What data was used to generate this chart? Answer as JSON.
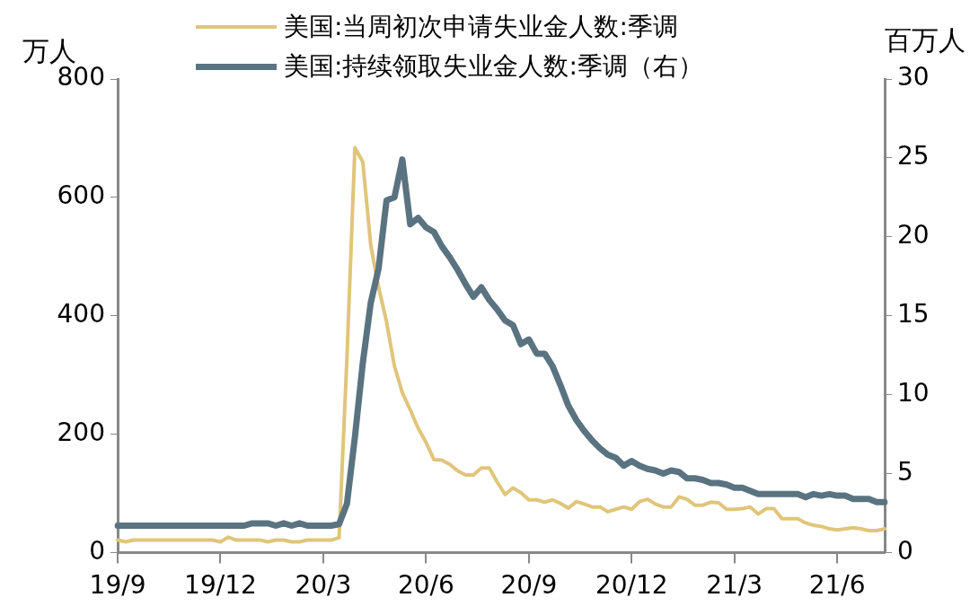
{
  "chart_data": {
    "type": "line",
    "ylabel": "万人",
    "y2label": "百万人",
    "categories": [
      "19/9",
      null,
      null,
      null,
      null,
      null,
      null,
      null,
      null,
      null,
      null,
      null,
      null,
      "19/12",
      null,
      null,
      null,
      null,
      null,
      null,
      null,
      null,
      null,
      null,
      null,
      null,
      "20/3",
      null,
      null,
      null,
      null,
      null,
      null,
      null,
      null,
      null,
      null,
      null,
      null,
      "20/6",
      null,
      null,
      null,
      null,
      null,
      null,
      null,
      null,
      null,
      null,
      null,
      null,
      "20/9",
      null,
      null,
      null,
      null,
      null,
      null,
      null,
      null,
      null,
      null,
      null,
      null,
      "20/12",
      null,
      null,
      null,
      null,
      null,
      null,
      null,
      null,
      null,
      null,
      null,
      null,
      "21/3",
      null,
      null,
      null,
      null,
      null,
      null,
      null,
      null,
      null,
      null,
      null,
      null,
      "21/6",
      null,
      null,
      null,
      null,
      null,
      null
    ],
    "series": [
      {
        "name": "美国:当周初次申请失业金人数:季调",
        "color": "#e0c57a",
        "values": [
          21,
          18,
          21,
          21,
          21,
          21,
          21,
          21,
          21,
          21,
          21,
          21,
          21,
          18,
          26,
          21,
          21,
          21,
          21,
          18,
          21,
          21,
          18,
          18,
          21,
          21,
          21,
          21,
          25,
          330,
          684,
          660,
          520,
          448,
          390,
          315,
          270,
          241,
          210,
          186,
          157,
          156,
          149,
          138,
          131,
          131,
          143,
          143,
          119,
          98,
          109,
          101,
          89,
          89,
          85,
          89,
          83,
          75,
          86,
          82,
          77,
          77,
          69,
          73,
          77,
          73,
          86,
          90,
          82,
          77,
          77,
          94,
          90,
          80,
          80,
          85,
          84,
          73,
          73,
          74,
          77,
          65,
          74,
          74,
          57,
          57,
          57,
          50,
          46,
          44,
          40,
          38,
          40,
          42,
          40,
          37,
          37,
          40
        ]
      },
      {
        "name": "美国:持续领取失业金人数:季调（右）",
        "color": "#5a7380",
        "axis": "y2",
        "values": [
          1.7,
          1.7,
          1.7,
          1.7,
          1.7,
          1.7,
          1.7,
          1.7,
          1.7,
          1.7,
          1.7,
          1.7,
          1.7,
          1.7,
          1.7,
          1.7,
          1.7,
          1.85,
          1.85,
          1.85,
          1.7,
          1.85,
          1.7,
          1.85,
          1.7,
          1.7,
          1.7,
          1.7,
          1.8,
          3.1,
          7.3,
          12.0,
          15.8,
          18.0,
          22.3,
          22.5,
          24.9,
          20.8,
          21.2,
          20.6,
          20.3,
          19.4,
          18.7,
          17.9,
          17.0,
          16.2,
          16.8,
          16.0,
          15.4,
          14.7,
          14.4,
          13.2,
          13.5,
          12.6,
          12.6,
          11.8,
          10.6,
          9.3,
          8.4,
          7.7,
          7.1,
          6.6,
          6.2,
          6.0,
          5.5,
          5.8,
          5.5,
          5.3,
          5.2,
          5.0,
          5.2,
          5.1,
          4.7,
          4.7,
          4.6,
          4.4,
          4.4,
          4.3,
          4.1,
          4.1,
          3.9,
          3.7,
          3.7,
          3.7,
          3.7,
          3.7,
          3.7,
          3.5,
          3.7,
          3.6,
          3.7,
          3.6,
          3.6,
          3.4,
          3.4,
          3.4,
          3.2,
          3.2
        ]
      }
    ],
    "ylim": [
      0,
      800
    ],
    "yticks": [
      0,
      200,
      400,
      600,
      800
    ],
    "y2lim": [
      0,
      30
    ],
    "y2ticks": [
      0,
      5,
      10,
      15,
      20,
      25,
      30
    ],
    "grid": false,
    "legend": "top",
    "marker": "none",
    "line_style": "solid"
  }
}
